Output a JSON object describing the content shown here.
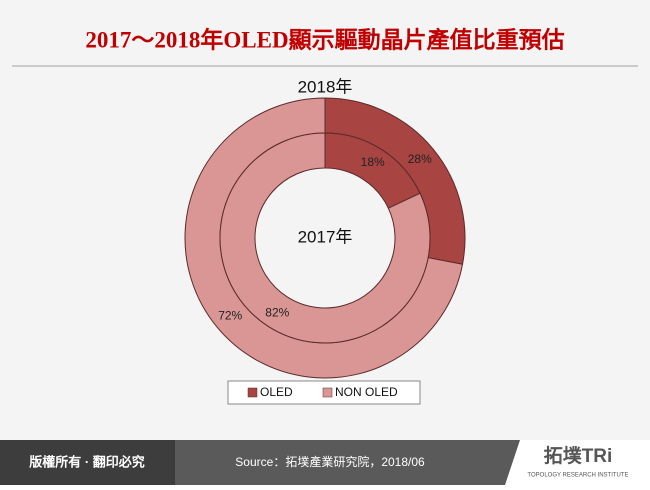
{
  "chart_data": {
    "type": "nested-donut",
    "title": "2017～2018年OLED顯示驅動晶片產值比重預估",
    "categories": [
      "OLED",
      "NON OLED"
    ],
    "colors": [
      "#a84442",
      "#d99694"
    ],
    "series": [
      {
        "name": "2018年",
        "values": [
          28,
          72
        ],
        "value_labels": [
          "28%",
          "72%"
        ]
      },
      {
        "name": "2017年",
        "values": [
          18,
          82
        ],
        "value_labels": [
          "18%",
          "82%"
        ]
      }
    ]
  },
  "footer": {
    "copyright": "版權所有 · 翻印必究",
    "source": "Source：拓墣產業研究院，2018/06"
  },
  "logo": {
    "name": "拓墣TRi",
    "tagline": "TOPOLOGY RESEARCH INSTITUTE"
  }
}
